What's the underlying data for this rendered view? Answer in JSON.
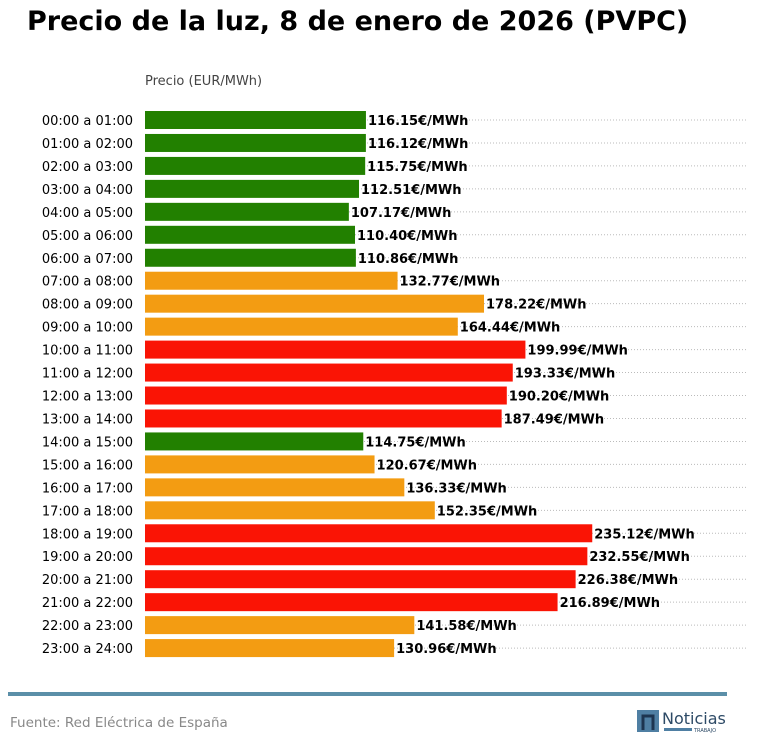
{
  "chart_data": {
    "type": "bar",
    "orientation": "horizontal",
    "title": "Precio de la luz, 8 de enero de 2026 (PVPC)",
    "xlabel": "Precio (EUR/MWh)",
    "xlim": [
      0,
      317
    ],
    "grid": "horizontal dotted",
    "value_suffix": "€/MWh",
    "categories": [
      "00:00 a 01:00",
      "01:00 a 02:00",
      "02:00 a 03:00",
      "03:00 a 04:00",
      "04:00 a 05:00",
      "05:00 a 06:00",
      "06:00 a 07:00",
      "07:00 a 08:00",
      "08:00 a 09:00",
      "09:00 a 10:00",
      "10:00 a 11:00",
      "11:00 a 12:00",
      "12:00 a 13:00",
      "13:00 a 14:00",
      "14:00 a 15:00",
      "15:00 a 16:00",
      "16:00 a 17:00",
      "17:00 a 18:00",
      "18:00 a 19:00",
      "19:00 a 20:00",
      "20:00 a 21:00",
      "21:00 a 22:00",
      "22:00 a 23:00",
      "23:00 a 24:00"
    ],
    "values": [
      116.15,
      116.12,
      115.75,
      112.51,
      107.17,
      110.4,
      110.86,
      132.77,
      178.22,
      164.44,
      199.99,
      193.33,
      190.2,
      187.49,
      114.75,
      120.67,
      136.33,
      152.35,
      235.12,
      232.55,
      226.38,
      216.89,
      141.58,
      130.96
    ],
    "levels": [
      "low",
      "low",
      "low",
      "low",
      "low",
      "low",
      "low",
      "mid",
      "mid",
      "mid",
      "high",
      "high",
      "high",
      "high",
      "low",
      "mid",
      "mid",
      "mid",
      "high",
      "high",
      "high",
      "high",
      "mid",
      "mid"
    ],
    "colors": {
      "low": "#228000",
      "mid": "#f39c12",
      "high": "#fa1405"
    }
  },
  "footer": {
    "source": "Fuente: Red Eléctrica de España",
    "logo_text": "Noticias",
    "logo_subtext": "TRABAJO"
  }
}
